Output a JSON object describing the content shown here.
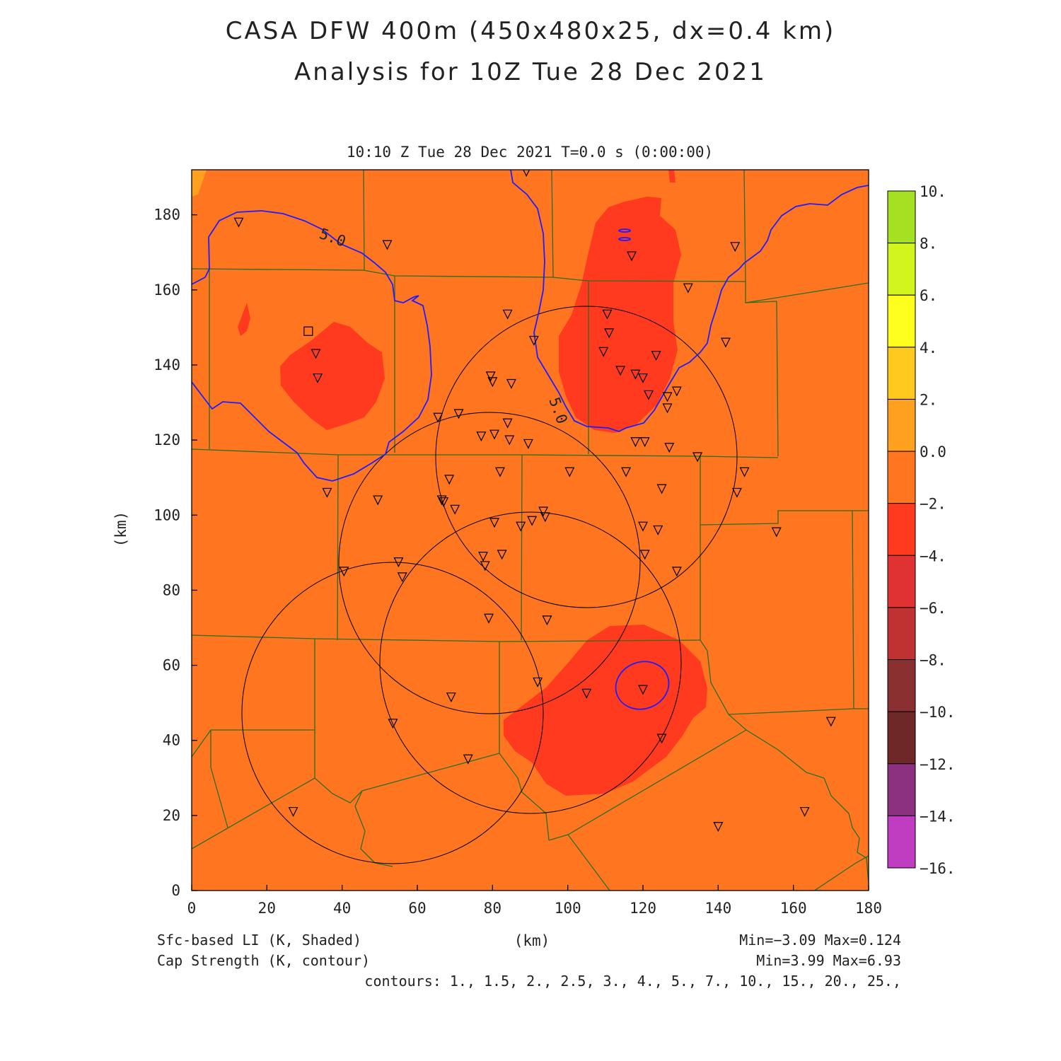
{
  "header": {
    "title_line1": "CASA DFW 400m (450x480x25, dx=0.4 km)",
    "title_line2": "Analysis for 10Z Tue 28 Dec 2021",
    "time_label": "10:10 Z Tue 28 Dec 2021   T=0.0 s (0:00:00)"
  },
  "axes": {
    "x_ticks": [
      "0",
      "20",
      "40",
      "60",
      "80",
      "100",
      "120",
      "140",
      "160",
      "180"
    ],
    "y_ticks": [
      "0",
      "20",
      "40",
      "60",
      "80",
      "100",
      "120",
      "140",
      "160",
      "180"
    ],
    "x_label": "(km)",
    "y_label": "(km)",
    "xlim": [
      0,
      180
    ],
    "ylim": [
      0,
      192
    ]
  },
  "colorbar": {
    "labels": [
      "10.",
      "8.",
      "6.",
      "4.",
      "2.",
      "0.0",
      "−2.",
      "−4.",
      "−6.",
      "−8.",
      "−10.",
      "−12.",
      "−14.",
      "−16."
    ],
    "colors": [
      "#a6e022",
      "#d2f51e",
      "#ffff1e",
      "#ffca1e",
      "#ffa01e",
      "#ff7520",
      "#ff3a1e",
      "#e03232",
      "#c03232",
      "#8b3030",
      "#6e2828",
      "#8c3080",
      "#c03cc0",
      "#dc3cdc"
    ]
  },
  "field_colors": {
    "background": "#ff7520",
    "li_minus2": "#ff3a1e",
    "cap_contour": "#1e1eff",
    "county_lines": "#2a6e1e",
    "range_rings": "#000000"
  },
  "contour_labels": [
    "5.0",
    "5.0"
  ],
  "footer": {
    "left1": "Sfc-based LI (K, Shaded)",
    "left2": "Cap Strength (K, contour)",
    "center": "(km)",
    "right1": "Min=−3.09 Max=0.124",
    "right2": "Min=3.99 Max=6.93",
    "right3": "contours: 1., 1.5, 2., 2.5, 3., 4., 5., 7., 10., 15., 20., 25.,"
  },
  "stations": [
    [
      12.5,
      178
    ],
    [
      52,
      172
    ],
    [
      89,
      191.5
    ],
    [
      117,
      169
    ],
    [
      144.5,
      171.5
    ],
    [
      132,
      160.5
    ],
    [
      84,
      153.5
    ],
    [
      110.5,
      153.5
    ],
    [
      111,
      148.5
    ],
    [
      91,
      146.5
    ],
    [
      109.5,
      143.5
    ],
    [
      123.5,
      142.5
    ],
    [
      142,
      146
    ],
    [
      33,
      143
    ],
    [
      33.5,
      136.5
    ],
    [
      79.5,
      137
    ],
    [
      80,
      135.5
    ],
    [
      85,
      135
    ],
    [
      114,
      138.5
    ],
    [
      118,
      137.5
    ],
    [
      120,
      136.5
    ],
    [
      121.5,
      132
    ],
    [
      129,
      133
    ],
    [
      126.5,
      131.5
    ],
    [
      126.5,
      128.5
    ],
    [
      65.5,
      126
    ],
    [
      71,
      127
    ],
    [
      84,
      124.5
    ],
    [
      77,
      121
    ],
    [
      80.5,
      121.5
    ],
    [
      84.5,
      120
    ],
    [
      89.5,
      119
    ],
    [
      118,
      119.5
    ],
    [
      120.5,
      119.5
    ],
    [
      127,
      118
    ],
    [
      134.5,
      115.5
    ],
    [
      82,
      111.5
    ],
    [
      100.5,
      111.5
    ],
    [
      115.5,
      111.5
    ],
    [
      147,
      111.5
    ],
    [
      68.5,
      109.5
    ],
    [
      125,
      107
    ],
    [
      145,
      106
    ],
    [
      36,
      106
    ],
    [
      49.5,
      104
    ],
    [
      66.5,
      104
    ],
    [
      67,
      103.5
    ],
    [
      70,
      101.5
    ],
    [
      93.5,
      101
    ],
    [
      94,
      99.5
    ],
    [
      90.5,
      98.5
    ],
    [
      80.5,
      98
    ],
    [
      87.5,
      97
    ],
    [
      120,
      97
    ],
    [
      124,
      96
    ],
    [
      155.5,
      95.5
    ],
    [
      77.5,
      89
    ],
    [
      82.5,
      89.5
    ],
    [
      120.5,
      89.5
    ],
    [
      78,
      86.5
    ],
    [
      55,
      87.5
    ],
    [
      40.5,
      85
    ],
    [
      56,
      83.5
    ],
    [
      129,
      85
    ],
    [
      79,
      72.5
    ],
    [
      94.5,
      72
    ],
    [
      92,
      55.5
    ],
    [
      120,
      53.5
    ],
    [
      105,
      52.5
    ],
    [
      69,
      51.5
    ],
    [
      53.5,
      44.5
    ],
    [
      125,
      40.5
    ],
    [
      73.5,
      35
    ],
    [
      27,
      21
    ],
    [
      140,
      17
    ],
    [
      163,
      21
    ],
    [
      170,
      45
    ]
  ],
  "special_marker": [
    31,
    149
  ]
}
